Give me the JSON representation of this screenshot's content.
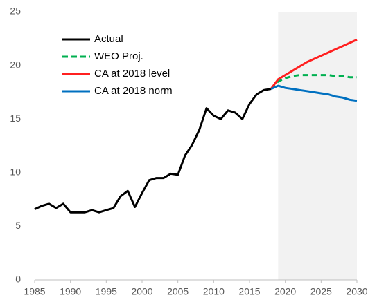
{
  "chart_data": {
    "type": "line",
    "xlim": [
      1985,
      2030
    ],
    "xticks": [
      1985,
      1990,
      1995,
      2000,
      2005,
      2010,
      2015,
      2020,
      2025,
      2030
    ],
    "ylim": [
      0,
      25
    ],
    "yticks": [
      0,
      5,
      10,
      15,
      20,
      25
    ],
    "grid": false,
    "legend": "upper left",
    "shaded_region": [
      2019,
      2030
    ],
    "shade_color": "#f2f2f2",
    "series": [
      {
        "name": "Actual",
        "color": "#000000",
        "dashed": false,
        "x": [
          1985,
          1986,
          1987,
          1988,
          1989,
          1990,
          1991,
          1992,
          1993,
          1994,
          1995,
          1996,
          1997,
          1998,
          1999,
          2000,
          2001,
          2002,
          2003,
          2004,
          2005,
          2006,
          2007,
          2008,
          2009,
          2010,
          2011,
          2012,
          2013,
          2014,
          2015,
          2016,
          2017,
          2018
        ],
        "values": [
          6.6,
          6.9,
          7.1,
          6.7,
          7.1,
          6.3,
          6.3,
          6.3,
          6.5,
          6.3,
          6.5,
          6.7,
          7.8,
          8.3,
          6.8,
          8.1,
          9.3,
          9.5,
          9.5,
          9.9,
          9.8,
          11.6,
          12.6,
          14.0,
          16.0,
          15.3,
          15.0,
          15.8,
          15.6,
          15.0,
          16.4,
          17.3,
          17.7,
          17.8
        ]
      },
      {
        "name": "WEO Proj.",
        "color": "#00b050",
        "dashed": true,
        "x": [
          2018,
          2019,
          2020,
          2021,
          2022,
          2023,
          2024,
          2025,
          2026,
          2027,
          2028,
          2029,
          2030
        ],
        "values": [
          17.8,
          18.5,
          18.8,
          19.0,
          19.1,
          19.1,
          19.1,
          19.1,
          19.1,
          19.0,
          19.0,
          18.9,
          18.9
        ]
      },
      {
        "name": "CA at 2018 level",
        "color": "#ff2020",
        "dashed": false,
        "x": [
          2018,
          2019,
          2020,
          2021,
          2022,
          2023,
          2024,
          2025,
          2026,
          2027,
          2028,
          2029,
          2030
        ],
        "values": [
          17.8,
          18.7,
          19.1,
          19.5,
          19.9,
          20.3,
          20.6,
          20.9,
          21.2,
          21.5,
          21.8,
          22.1,
          22.4
        ]
      },
      {
        "name": "CA at 2018 norm",
        "color": "#0070c0",
        "dashed": false,
        "x": [
          2018,
          2019,
          2020,
          2021,
          2022,
          2023,
          2024,
          2025,
          2026,
          2027,
          2028,
          2029,
          2030
        ],
        "values": [
          17.8,
          18.1,
          17.9,
          17.8,
          17.7,
          17.6,
          17.5,
          17.4,
          17.3,
          17.1,
          17.0,
          16.8,
          16.7
        ]
      }
    ]
  }
}
